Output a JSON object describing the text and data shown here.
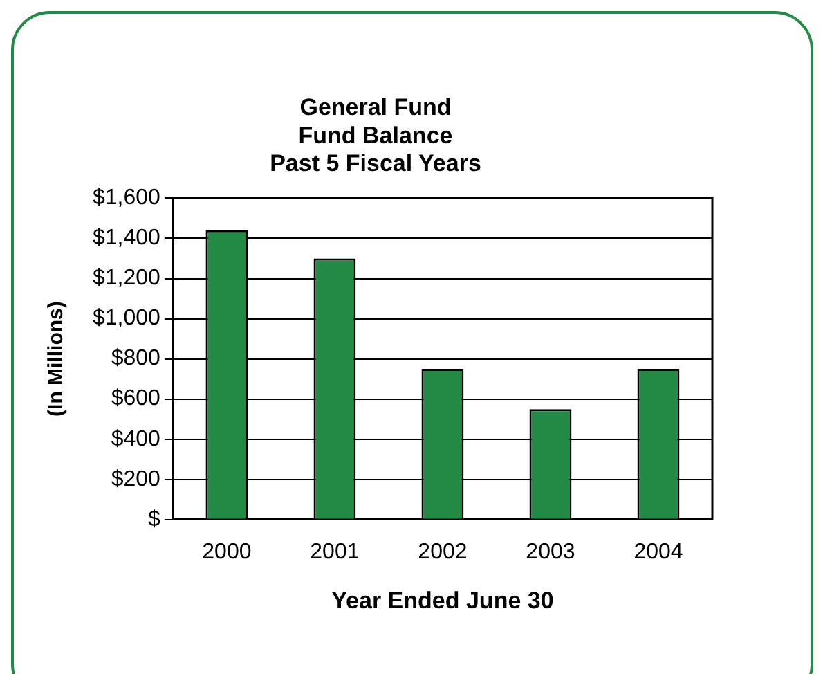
{
  "chart_data": {
    "type": "bar",
    "title": "General Fund\nFund Balance\nPast 5 Fiscal Years",
    "xlabel": "Year Ended June 30",
    "ylabel": "(In Millions)",
    "categories": [
      "2000",
      "2001",
      "2002",
      "2003",
      "2004"
    ],
    "values": [
      1440,
      1300,
      750,
      550,
      750
    ],
    "color": "#228a45",
    "ylim": [
      0,
      1600
    ],
    "yticks": [
      {
        "value": 0,
        "label": "$"
      },
      {
        "value": 200,
        "label": "$200"
      },
      {
        "value": 400,
        "label": "$400"
      },
      {
        "value": 600,
        "label": "$600"
      },
      {
        "value": 800,
        "label": "$800"
      },
      {
        "value": 1000,
        "label": "$1,000"
      },
      {
        "value": 1200,
        "label": "$1,200"
      },
      {
        "value": 1400,
        "label": "$1,400"
      },
      {
        "value": 1600,
        "label": "$1,600"
      }
    ],
    "grid": "y",
    "legend": false
  }
}
